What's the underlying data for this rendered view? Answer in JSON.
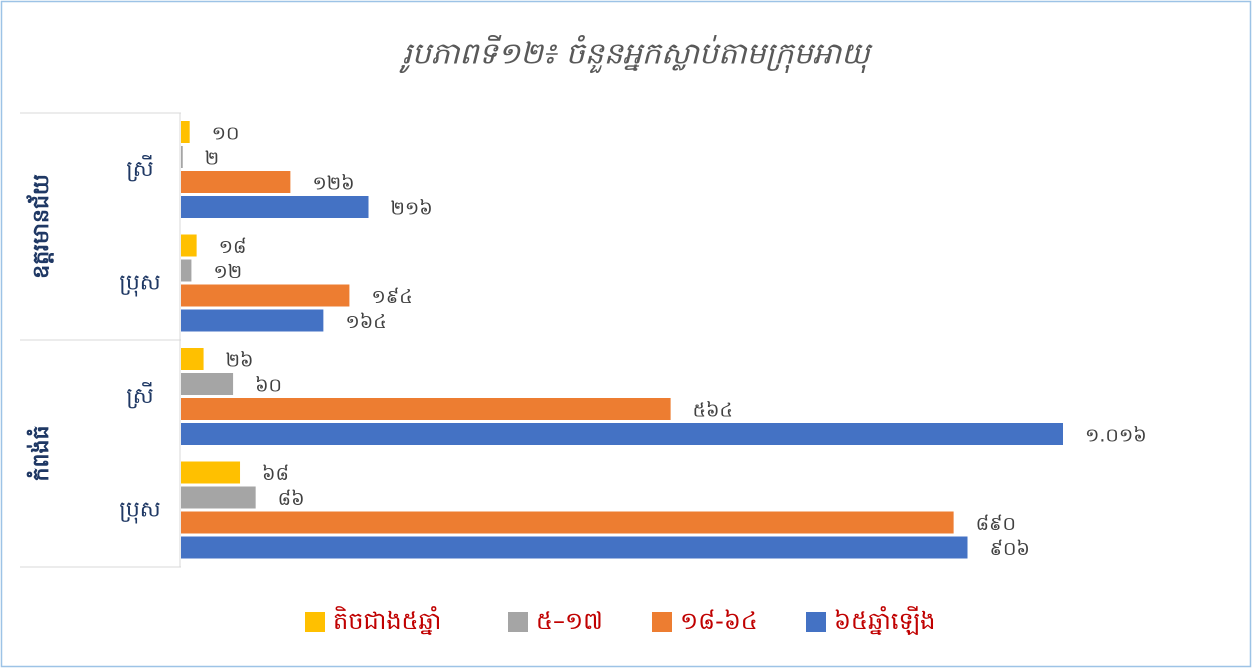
{
  "chart_data": {
    "type": "bar",
    "orientation": "horizontal",
    "title": "រូបភាពទី១២៖ ចំនួនអ្នកស្លាប់តាមក្រុមអាយុ",
    "groups": [
      {
        "name": "ឧត្តរមានជ័យ",
        "categories": [
          "ស្រី",
          "ប្រុស"
        ]
      },
      {
        "name": "កំពង់ធំ",
        "categories": [
          "ស្រី",
          "ប្រុស"
        ]
      }
    ],
    "series": [
      {
        "name": "តិចជាង៥ឆ្នាំ",
        "color": "#ffc000",
        "values": [
          10,
          18,
          26,
          68
        ],
        "value_labels": [
          "១០",
          "១៨",
          "២៦",
          "៦៨"
        ]
      },
      {
        "name": "៥–១៧",
        "color": "#a5a5a5",
        "values": [
          2,
          12,
          60,
          86
        ],
        "value_labels": [
          "២",
          "១២",
          "៦០",
          "៨៦"
        ]
      },
      {
        "name": "១៨-៦៤",
        "color": "#ed7d31",
        "values": [
          126,
          194,
          564,
          890
        ],
        "value_labels": [
          "១២៦",
          "១៩៤",
          "៥៦៤",
          "៨៩០"
        ]
      },
      {
        "name": "៦៥ឆ្នាំឡើង",
        "color": "#4472c4",
        "values": [
          216,
          164,
          1016,
          906
        ],
        "value_labels": [
          "២១៦",
          "១៦៤",
          "១.០១៦",
          "៩០៦"
        ]
      }
    ],
    "legend": "bottom"
  }
}
